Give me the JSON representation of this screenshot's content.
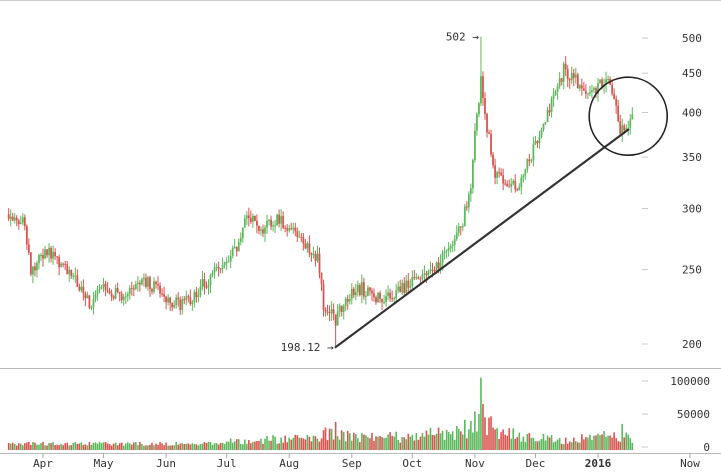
{
  "chart_data": {
    "type": "candlestick",
    "title": "",
    "xlabel": "",
    "ylabel": "",
    "scale": "log",
    "grid": false,
    "colors": {
      "up": "#5cb85c",
      "down": "#d9534f",
      "line": "#333333",
      "axis": "#c8c8c8"
    },
    "x_tick_labels": [
      "Apr",
      "May",
      "Jun",
      "Jul",
      "Aug",
      "Sep",
      "Oct",
      "Nov",
      "Dec",
      "2016",
      "Now"
    ],
    "y_tick_labels": [
      "500",
      "450",
      "400",
      "350",
      "300",
      "250",
      "200"
    ],
    "y_ticks": [
      500,
      450,
      400,
      350,
      300,
      250,
      200
    ],
    "ylim": [
      190,
      540
    ],
    "volume_tick_labels": [
      "100000",
      "50000",
      "0"
    ],
    "volume_ticks": [
      100000,
      50000,
      0
    ],
    "volume_ylim": [
      0,
      110000
    ],
    "annotations": [
      {
        "label": "502 →",
        "value": 502,
        "date": "2015-11-04"
      },
      {
        "label": "198.12 →",
        "value": 198.12,
        "date": "2015-08-24"
      }
    ],
    "trendline": {
      "start": {
        "date": "2015-08-24",
        "value": 198.12
      },
      "end": {
        "date": "2016-01-15",
        "value": 380
      }
    },
    "highlight_circle": {
      "center_date": "2016-01-12",
      "center_value": 398
    },
    "price_keypoints": [
      [
        "2015-03-15",
        295
      ],
      [
        "2015-03-22",
        290
      ],
      [
        "2015-03-26",
        250
      ],
      [
        "2015-04-03",
        265
      ],
      [
        "2015-04-10",
        255
      ],
      [
        "2015-04-18",
        240
      ],
      [
        "2015-04-24",
        225
      ],
      [
        "2015-05-01",
        236
      ],
      [
        "2015-05-10",
        232
      ],
      [
        "2015-05-18",
        242
      ],
      [
        "2015-05-26",
        238
      ],
      [
        "2015-06-03",
        228
      ],
      [
        "2015-06-10",
        225
      ],
      [
        "2015-06-17",
        236
      ],
      [
        "2015-06-24",
        246
      ],
      [
        "2015-07-02",
        256
      ],
      [
        "2015-07-07",
        272
      ],
      [
        "2015-07-12",
        295
      ],
      [
        "2015-07-17",
        280
      ],
      [
        "2015-07-26",
        290
      ],
      [
        "2015-08-02",
        282
      ],
      [
        "2015-08-08",
        270
      ],
      [
        "2015-08-15",
        257
      ],
      [
        "2015-08-18",
        226
      ],
      [
        "2015-08-24",
        215
      ],
      [
        "2015-08-29",
        229
      ],
      [
        "2015-09-06",
        236
      ],
      [
        "2015-09-13",
        230
      ],
      [
        "2015-09-20",
        232
      ],
      [
        "2015-09-28",
        238
      ],
      [
        "2015-10-05",
        245
      ],
      [
        "2015-10-14",
        255
      ],
      [
        "2015-10-20",
        268
      ],
      [
        "2015-10-26",
        288
      ],
      [
        "2015-10-30",
        325
      ],
      [
        "2015-11-02",
        395
      ],
      [
        "2015-11-04",
        440
      ],
      [
        "2015-11-07",
        380
      ],
      [
        "2015-11-11",
        335
      ],
      [
        "2015-11-15",
        325
      ],
      [
        "2015-11-22",
        322
      ],
      [
        "2015-11-28",
        345
      ],
      [
        "2015-12-04",
        385
      ],
      [
        "2015-12-10",
        415
      ],
      [
        "2015-12-15",
        455
      ],
      [
        "2015-12-20",
        445
      ],
      [
        "2015-12-26",
        420
      ],
      [
        "2015-12-31",
        430
      ],
      [
        "2016-01-05",
        440
      ],
      [
        "2016-01-09",
        425
      ],
      [
        "2016-01-12",
        380
      ],
      [
        "2016-01-15",
        385
      ],
      [
        "2016-01-18",
        392
      ]
    ],
    "volume_keypoints": [
      [
        "2015-03-15",
        5500
      ],
      [
        "2015-05-01",
        5000
      ],
      [
        "2015-06-20",
        5000
      ],
      [
        "2015-07-15",
        11000
      ],
      [
        "2015-08-10",
        12000
      ],
      [
        "2015-08-20",
        20000
      ],
      [
        "2015-09-05",
        15000
      ],
      [
        "2015-10-01",
        15000
      ],
      [
        "2015-10-20",
        22000
      ],
      [
        "2015-10-30",
        30000
      ],
      [
        "2015-11-04",
        65000
      ],
      [
        "2015-11-10",
        25000
      ],
      [
        "2015-11-25",
        15000
      ],
      [
        "2015-12-15",
        10000
      ],
      [
        "2016-01-12",
        18000
      ],
      [
        "2016-01-18",
        10000
      ]
    ],
    "volume_spikes": [
      [
        "2015-08-24",
        38000
      ],
      [
        "2015-11-04",
        105000
      ],
      [
        "2015-11-05",
        65000
      ],
      [
        "2015-11-06",
        45000
      ],
      [
        "2016-01-13",
        35000
      ]
    ]
  }
}
